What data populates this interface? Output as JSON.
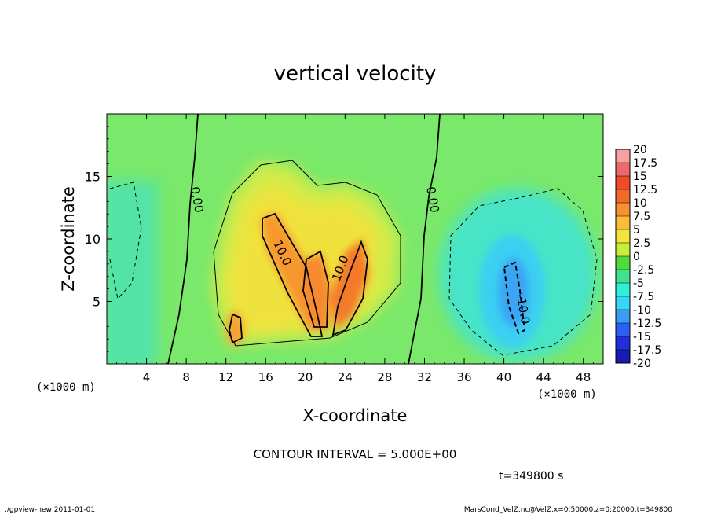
{
  "chart_data": {
    "type": "heatmap",
    "title": "vertical velocity",
    "xlabel": "X-coordinate",
    "ylabel": "Z-coordinate",
    "x_unit_label": "(×1000 m)",
    "y_unit_label": "(×1000 m)",
    "xlim": [
      0,
      50
    ],
    "ylim": [
      0,
      20
    ],
    "x_ticks": [
      "4",
      "8",
      "12",
      "16",
      "20",
      "24",
      "28",
      "32",
      "36",
      "40",
      "44",
      "48"
    ],
    "y_ticks": [
      "5",
      "10",
      "15"
    ],
    "colorbar": {
      "labels": [
        "20",
        "17.5",
        "15",
        "12.5",
        "10",
        "7.5",
        "5",
        "2.5",
        "0",
        "-2.5",
        "-5",
        "-7.5",
        "-10",
        "-12.5",
        "-15",
        "-17.5",
        "-20"
      ],
      "colors": [
        "#f6a0a0",
        "#ee6a6a",
        "#f04a2a",
        "#f4682a",
        "#f79030",
        "#fbbd35",
        "#f3e33c",
        "#c8ef38",
        "#4fdc3a",
        "#3fe290",
        "#2ff0d8",
        "#38d6f4",
        "#3a9cf4",
        "#2f5ff0",
        "#1f2fdc",
        "#1a1ab4",
        "#7a1fb8"
      ]
    },
    "contour_labels": [
      "0.00",
      "10.0",
      "10.0",
      "0.00",
      "-10.0"
    ],
    "contour_interval_text": "CONTOUR INTERVAL = 5.000E+00",
    "time_text": "t=349800 s",
    "grid": false
  },
  "footer": {
    "left": "./gpview-new  2011-01-01",
    "right": "MarsCond_VelZ.nc@VelZ,x=0:50000,z=0:20000,t=349800"
  }
}
